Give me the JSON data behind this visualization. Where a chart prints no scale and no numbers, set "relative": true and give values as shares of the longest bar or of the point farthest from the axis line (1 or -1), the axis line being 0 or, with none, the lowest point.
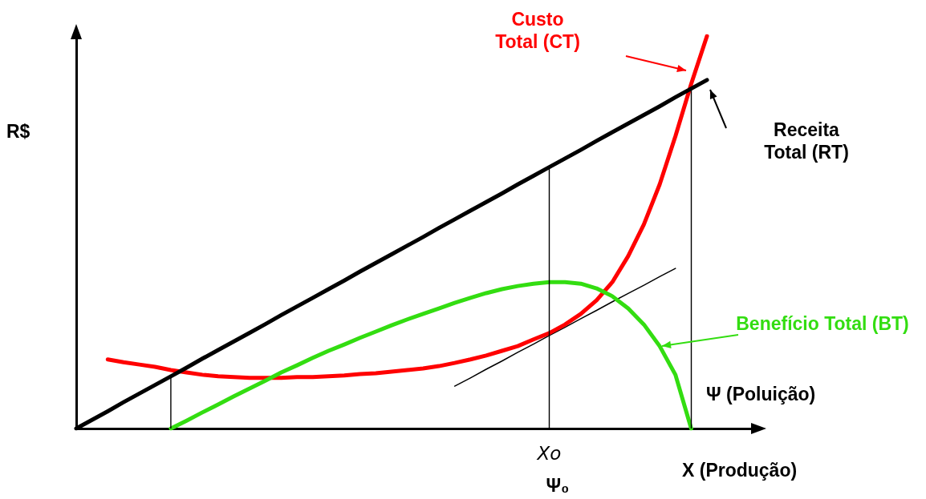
{
  "chart_data": {
    "type": "line",
    "relative": true,
    "xlabel": "X (Produção)",
    "ylabel": "R$",
    "legend": false,
    "grid": false,
    "marker": "none",
    "line_style": "solid",
    "categories": [
      null,
      null,
      null,
      null,
      null,
      null,
      null,
      null,
      null,
      null,
      null,
      null,
      null,
      null,
      null,
      null,
      null,
      null,
      null,
      null,
      null,
      null,
      null,
      null,
      null,
      null,
      null,
      null,
      null,
      null,
      null,
      null,
      null,
      null,
      null,
      null,
      null,
      null,
      null,
      null,
      null,
      null,
      null,
      null
    ],
    "series": [
      {
        "name": "Custo Total (CT)",
        "color": "#ff0000",
        "values": [
          null,
          null,
          0.176,
          0.169,
          0.163,
          0.157,
          0.149,
          0.143,
          0.137,
          0.133,
          0.131,
          0.129,
          0.129,
          0.129,
          0.131,
          0.131,
          0.133,
          0.135,
          0.139,
          0.141,
          0.145,
          0.149,
          0.153,
          0.159,
          0.167,
          0.176,
          0.186,
          0.198,
          0.21,
          0.227,
          0.243,
          0.265,
          0.292,
          0.327,
          0.373,
          0.439,
          0.52,
          0.622,
          0.745,
          0.878,
          1.0,
          null,
          null,
          null
        ]
      },
      {
        "name": "Receita Total (RT)",
        "color": "#000000",
        "values": [
          0,
          0.022,
          0.044,
          0.067,
          0.089,
          0.111,
          0.133,
          0.155,
          0.178,
          0.2,
          0.222,
          0.244,
          0.266,
          0.289,
          0.311,
          0.333,
          0.355,
          0.377,
          0.4,
          0.422,
          0.444,
          0.466,
          0.488,
          0.511,
          0.533,
          0.555,
          0.577,
          0.599,
          0.622,
          0.644,
          0.666,
          0.688,
          0.71,
          0.733,
          0.755,
          0.777,
          0.799,
          0.821,
          0.844,
          0.866,
          0.888,
          null,
          null,
          null
        ]
      },
      {
        "name": "Benefício Total (BT)",
        "color": "#33dd11",
        "values": [
          null,
          null,
          null,
          null,
          null,
          null,
          0,
          0.02,
          0.041,
          0.061,
          0.082,
          0.102,
          0.122,
          0.143,
          0.161,
          0.18,
          0.198,
          0.214,
          0.231,
          0.247,
          0.263,
          0.278,
          0.292,
          0.306,
          0.32,
          0.333,
          0.345,
          0.355,
          0.363,
          0.369,
          0.373,
          0.373,
          0.369,
          0.357,
          0.337,
          0.306,
          0.265,
          0.21,
          0.137,
          0,
          null,
          null,
          null,
          null
        ]
      },
      {
        "color": "#000000",
        "values": [
          null,
          null,
          null,
          null,
          null,
          null,
          null,
          null,
          null,
          null,
          null,
          null,
          null,
          null,
          null,
          null,
          null,
          null,
          null,
          null,
          null,
          null,
          null,
          null,
          0.108,
          0.129,
          0.151,
          0.172,
          0.194,
          0.215,
          0.237,
          0.258,
          0.28,
          0.301,
          0.323,
          0.344,
          0.365,
          0.387,
          0.408,
          null,
          null,
          null,
          null,
          null
        ]
      }
    ],
    "annotations": [
      "Ψ (Poluição)",
      "Ψ₀",
      "Xo"
    ]
  }
}
